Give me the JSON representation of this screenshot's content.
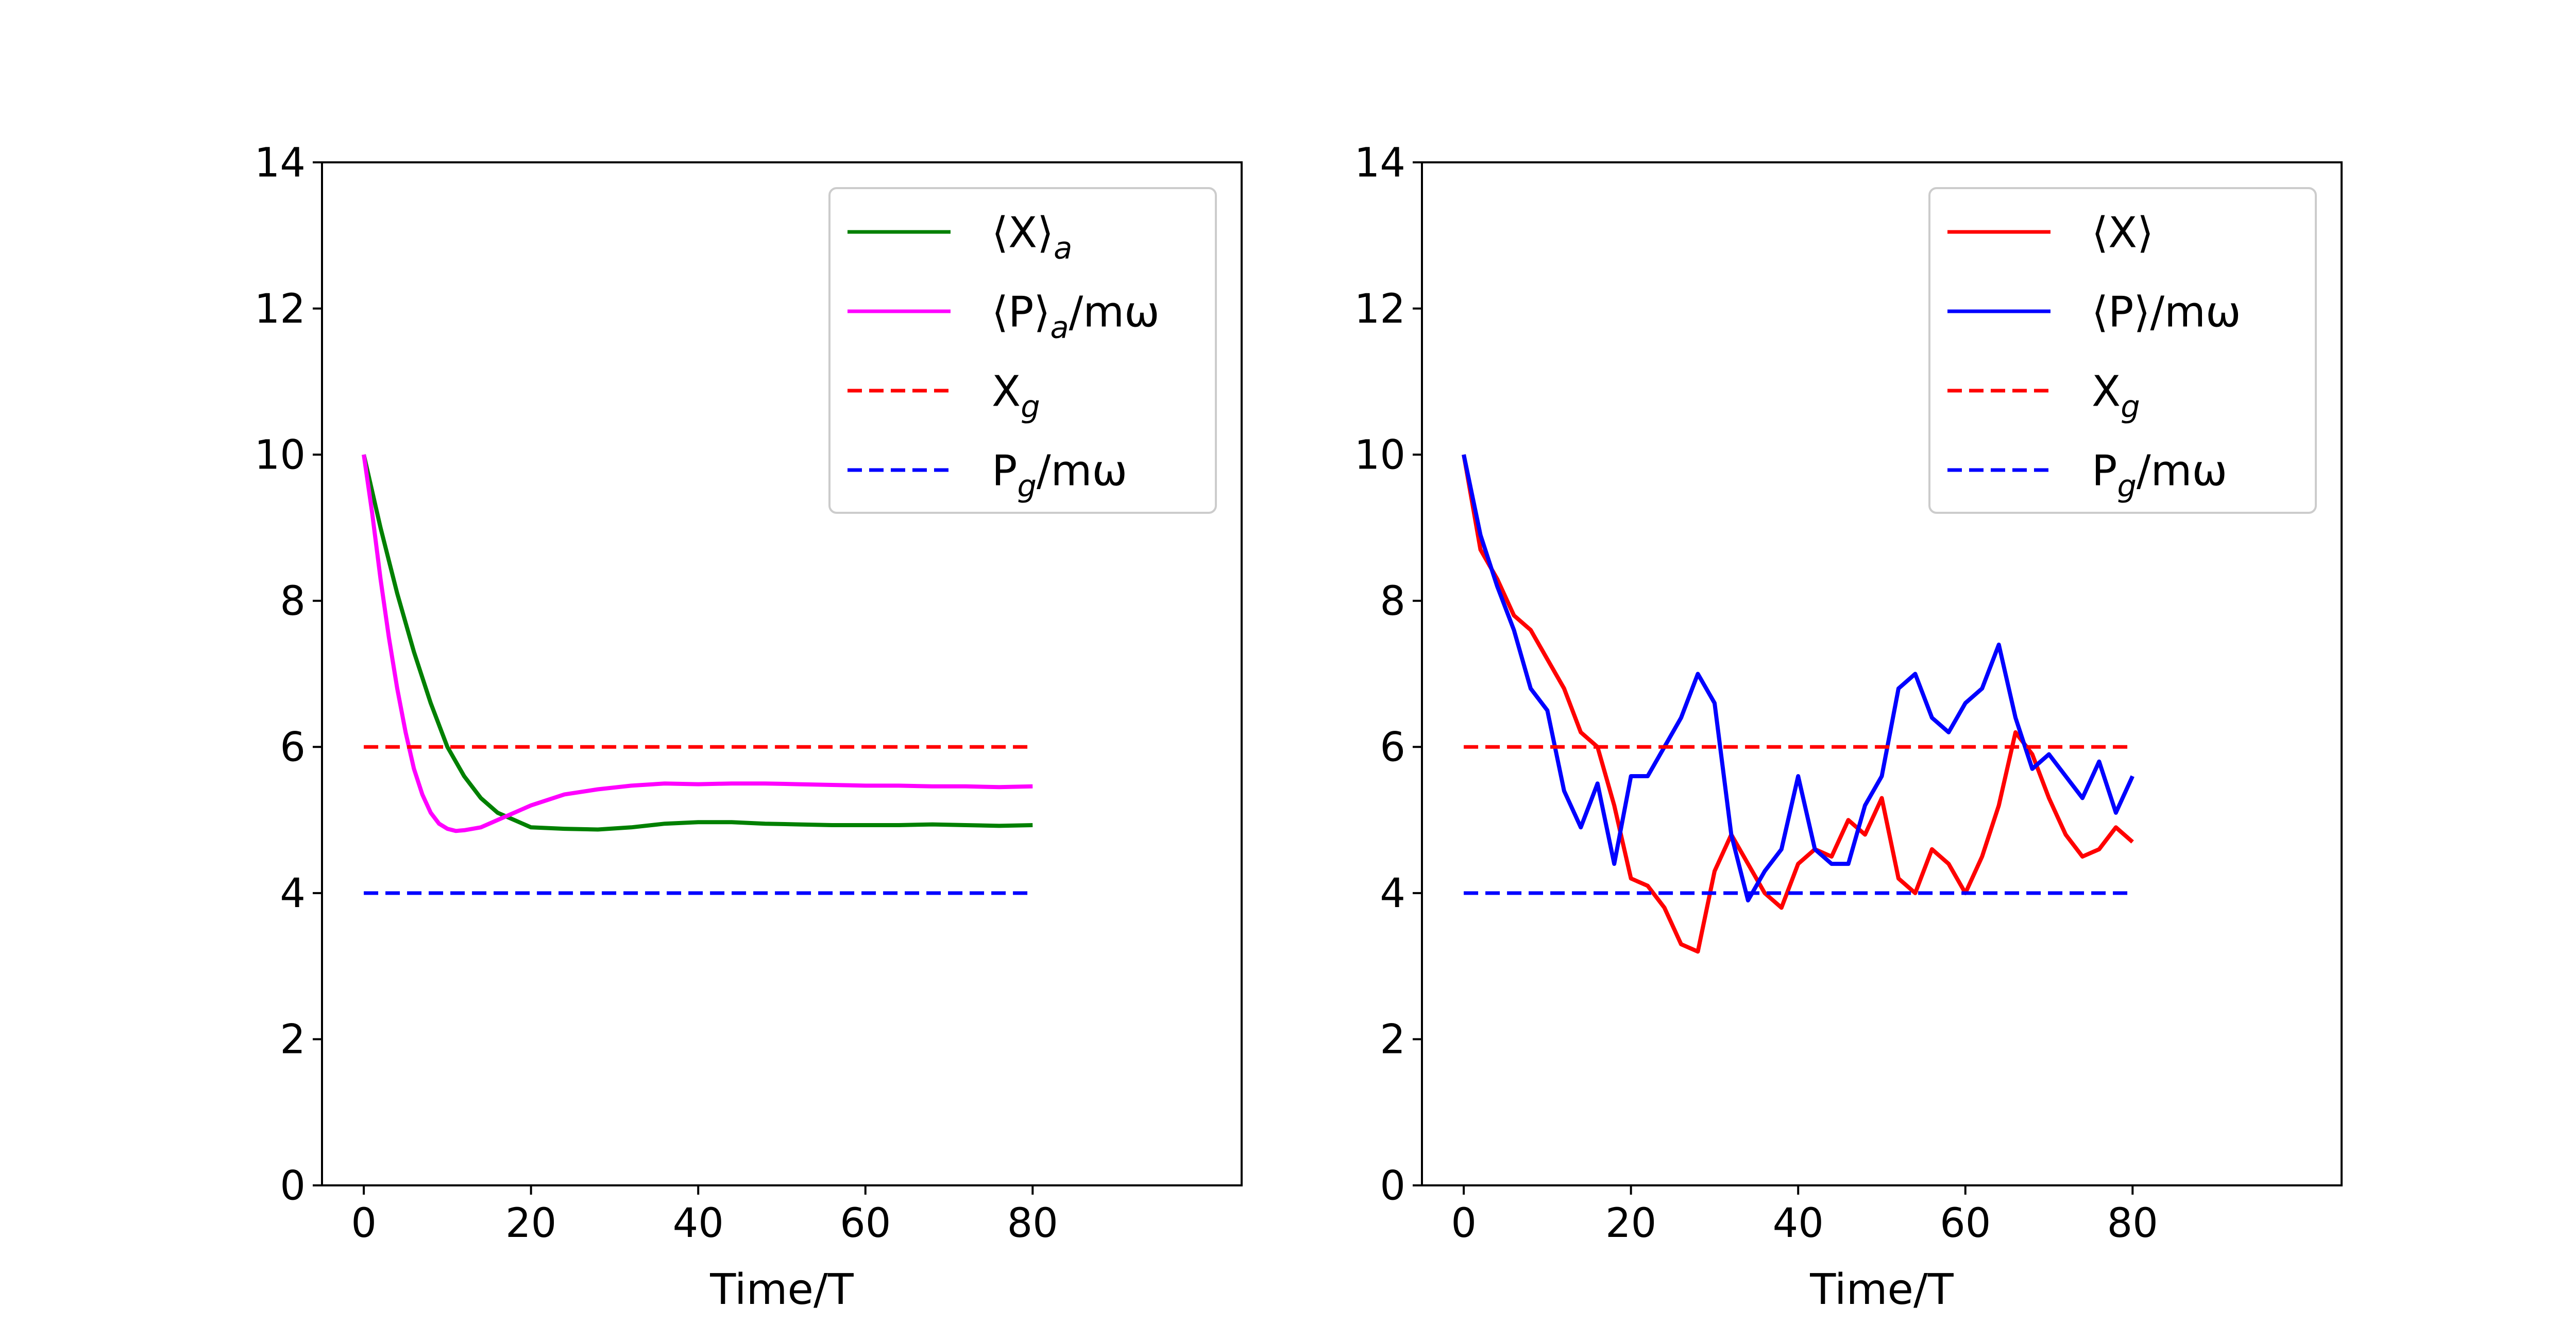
{
  "chart_data": [
    {
      "type": "line",
      "panel": "left",
      "xlabel": "Time/T",
      "ylabel": "",
      "xlim": [
        -5,
        105
      ],
      "ylim": [
        0,
        14
      ],
      "xticks": [
        0,
        20,
        40,
        60,
        80
      ],
      "yticks": [
        0,
        2,
        4,
        6,
        8,
        10,
        12,
        14
      ],
      "grid": false,
      "legend_position": "top-right",
      "series": [
        {
          "name": "⟨X⟩a",
          "label_main": "⟨X⟩",
          "label_sub": "a",
          "label_tail": "",
          "color": "#008000",
          "style": "solid",
          "x": [
            0,
            2,
            4,
            6,
            8,
            10,
            12,
            14,
            16,
            18,
            20,
            24,
            28,
            32,
            36,
            40,
            44,
            48,
            52,
            56,
            60,
            64,
            68,
            72,
            76,
            80
          ],
          "y": [
            10,
            9.0,
            8.1,
            7.3,
            6.6,
            6.0,
            5.6,
            5.3,
            5.1,
            5.0,
            4.9,
            4.88,
            4.87,
            4.9,
            4.95,
            4.97,
            4.97,
            4.95,
            4.94,
            4.93,
            4.93,
            4.93,
            4.94,
            4.93,
            4.92,
            4.93
          ]
        },
        {
          "name": "⟨P⟩a/mω",
          "label_main": "⟨P⟩",
          "label_sub": "a",
          "label_tail": "/mω",
          "color": "#ff00ff",
          "style": "solid",
          "x": [
            0,
            1,
            2,
            3,
            4,
            5,
            6,
            7,
            8,
            9,
            10,
            11,
            12,
            14,
            16,
            18,
            20,
            24,
            28,
            32,
            36,
            40,
            44,
            48,
            52,
            56,
            60,
            64,
            68,
            72,
            76,
            80
          ],
          "y": [
            10,
            9.2,
            8.3,
            7.5,
            6.8,
            6.2,
            5.7,
            5.35,
            5.1,
            4.95,
            4.88,
            4.85,
            4.86,
            4.9,
            5.0,
            5.1,
            5.2,
            5.35,
            5.42,
            5.47,
            5.5,
            5.49,
            5.5,
            5.5,
            5.49,
            5.48,
            5.47,
            5.47,
            5.46,
            5.46,
            5.45,
            5.46
          ]
        },
        {
          "name": "Xg",
          "label_main": "X",
          "label_sub": "g",
          "label_tail": "",
          "color": "#ff0000",
          "style": "dashed",
          "x": [
            0,
            80
          ],
          "y": [
            6,
            6
          ]
        },
        {
          "name": "Pg/mω",
          "label_main": "P",
          "label_sub": "g",
          "label_tail": "/mω",
          "color": "#0000ff",
          "style": "dashed",
          "x": [
            0,
            80
          ],
          "y": [
            4,
            4
          ]
        }
      ]
    },
    {
      "type": "line",
      "panel": "right",
      "xlabel": "Time/T",
      "ylabel": "",
      "xlim": [
        -5,
        105
      ],
      "ylim": [
        0,
        14
      ],
      "xticks": [
        0,
        20,
        40,
        60,
        80
      ],
      "yticks": [
        0,
        2,
        4,
        6,
        8,
        10,
        12,
        14
      ],
      "grid": false,
      "legend_position": "top-right",
      "series": [
        {
          "name": "⟨X⟩",
          "label_main": "⟨X⟩",
          "label_sub": "",
          "label_tail": "",
          "color": "#ff0000",
          "style": "solid",
          "x": [
            0,
            2,
            4,
            6,
            8,
            10,
            12,
            14,
            16,
            18,
            20,
            22,
            24,
            26,
            28,
            30,
            32,
            34,
            36,
            38,
            40,
            42,
            44,
            46,
            48,
            50,
            52,
            54,
            56,
            58,
            60,
            62,
            64,
            66,
            68,
            70,
            72,
            74,
            76,
            78,
            80
          ],
          "y": [
            10,
            8.7,
            8.3,
            7.8,
            7.6,
            7.2,
            6.8,
            6.2,
            6.0,
            5.2,
            4.2,
            4.1,
            3.8,
            3.3,
            3.2,
            4.3,
            4.8,
            4.4,
            4.0,
            3.8,
            4.4,
            4.6,
            4.5,
            5.0,
            4.8,
            5.3,
            4.2,
            4.0,
            4.6,
            4.4,
            4.0,
            4.5,
            5.2,
            6.2,
            5.9,
            5.3,
            4.8,
            4.5,
            4.6,
            4.9,
            4.7
          ]
        },
        {
          "name": "⟨P⟩/mω",
          "label_main": "⟨P⟩",
          "label_sub": "",
          "label_tail": "/mω",
          "color": "#0000ff",
          "style": "solid",
          "x": [
            0,
            2,
            4,
            6,
            8,
            10,
            12,
            14,
            16,
            18,
            20,
            22,
            24,
            26,
            28,
            30,
            32,
            34,
            36,
            38,
            40,
            42,
            44,
            46,
            48,
            50,
            52,
            54,
            56,
            58,
            60,
            62,
            64,
            66,
            68,
            70,
            72,
            74,
            76,
            78,
            80
          ],
          "y": [
            10,
            8.9,
            8.2,
            7.6,
            6.8,
            6.5,
            5.4,
            4.9,
            5.5,
            4.4,
            5.6,
            5.6,
            6.0,
            6.4,
            7.0,
            6.6,
            4.8,
            3.9,
            4.3,
            4.6,
            5.6,
            4.6,
            4.4,
            4.4,
            5.2,
            5.6,
            6.8,
            7.0,
            6.4,
            6.2,
            6.6,
            6.8,
            7.4,
            6.4,
            5.7,
            5.9,
            5.6,
            5.3,
            5.8,
            5.1,
            5.6
          ]
        },
        {
          "name": "Xg",
          "label_main": "X",
          "label_sub": "g",
          "label_tail": "",
          "color": "#ff0000",
          "style": "dashed",
          "x": [
            0,
            80
          ],
          "y": [
            6,
            6
          ]
        },
        {
          "name": "Pg/mω",
          "label_main": "P",
          "label_sub": "g",
          "label_tail": "/mω",
          "color": "#0000ff",
          "style": "dashed",
          "x": [
            0,
            80
          ],
          "y": [
            4,
            4
          ]
        }
      ]
    }
  ]
}
